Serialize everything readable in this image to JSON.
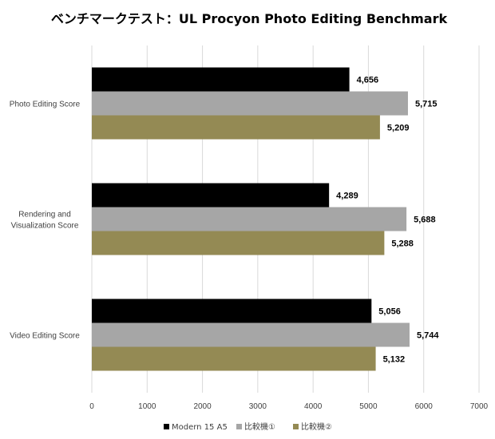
{
  "chart_data": {
    "type": "bar",
    "orientation": "horizontal",
    "title": "ベンチマークテスト：UL Procyon Photo Editing Benchmark",
    "categories": [
      [
        "Photo Editing Score"
      ],
      [
        "Rendering and",
        "Visualization Score"
      ],
      [
        "Video Editing Score"
      ]
    ],
    "series": [
      {
        "name": "Modern 15 A5",
        "color": "#000000",
        "values": [
          4656,
          4289,
          5056
        ],
        "labels": [
          "4,656",
          "4,289",
          "5,056"
        ]
      },
      {
        "name": "比較機①",
        "color": "#a6a6a6",
        "values": [
          5715,
          5688,
          5744
        ],
        "labels": [
          "5,715",
          "5,688",
          "5,744"
        ]
      },
      {
        "name": "比較機②",
        "color": "#948a54",
        "values": [
          5209,
          5288,
          5132
        ],
        "labels": [
          "5,209",
          "5,288",
          "5,132"
        ]
      }
    ],
    "xlim": [
      0,
      7000
    ],
    "xticks": [
      0,
      1000,
      2000,
      3000,
      4000,
      5000,
      6000,
      7000
    ],
    "grid": true,
    "legend_position": "bottom"
  }
}
